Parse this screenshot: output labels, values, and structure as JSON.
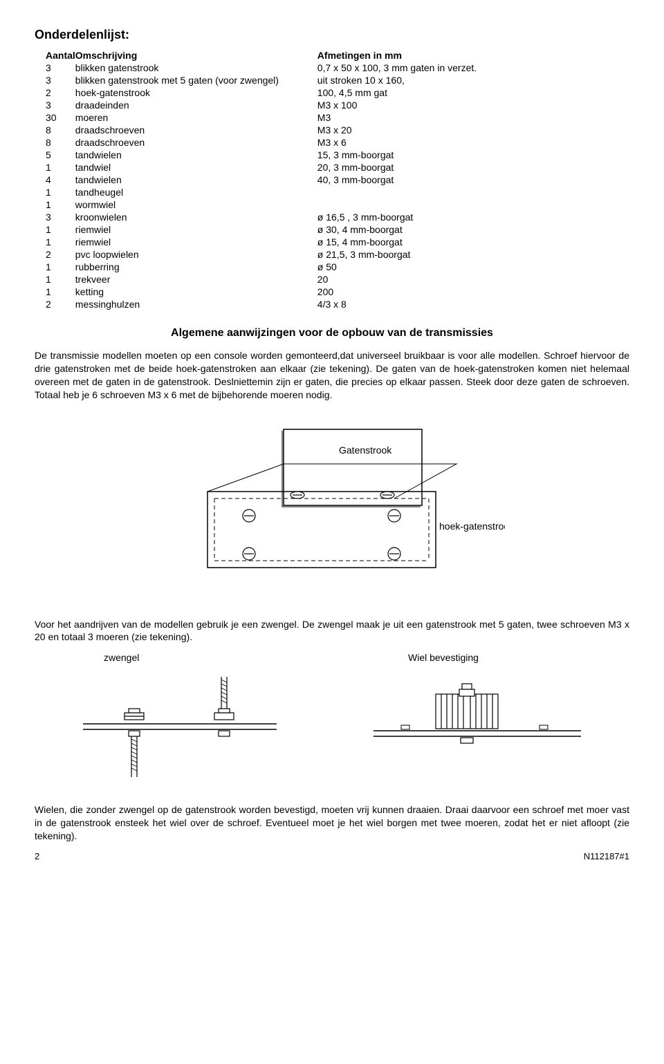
{
  "title": "Onderdelenlijst:",
  "header": {
    "qty": "Aantal",
    "desc": "Omschrijving",
    "dim": "Afmetingen in mm"
  },
  "rows": [
    {
      "q": "3",
      "d": "blikken gatenstrook",
      "m": "0,7 x 50 x 100, 3 mm gaten in verzet."
    },
    {
      "q": "3",
      "d": "blikken gatenstrook met 5 gaten (voor zwengel)",
      "m": "uit stroken 10 x 160,"
    },
    {
      "q": "2",
      "d": "hoek-gatenstrook",
      "m": "100, 4,5 mm gat"
    },
    {
      "q": "3",
      "d": "draadeinden",
      "m": "M3 x 100"
    },
    {
      "q": "30",
      "d": "moeren",
      "m": "M3"
    },
    {
      "q": "8",
      "d": "draadschroeven",
      "m": "M3 x 20"
    },
    {
      "q": "8",
      "d": "draadschroeven",
      "m": "M3 x 6"
    },
    {
      "q": "5",
      "d": "tandwielen",
      "m": "15, 3 mm-boorgat"
    },
    {
      "q": "1",
      "d": "tandwiel",
      "m": "20, 3 mm-boorgat"
    },
    {
      "q": "4",
      "d": "tandwielen",
      "m": "40, 3 mm-boorgat"
    },
    {
      "q": "1",
      "d": "tandheugel",
      "m": ""
    },
    {
      "q": "1",
      "d": "wormwiel",
      "m": ""
    },
    {
      "q": "3",
      "d": "kroonwielen",
      "m": "ø 16,5 , 3 mm-boorgat"
    },
    {
      "q": "1",
      "d": "riemwiel",
      "m": "ø 30, 4 mm-boorgat"
    },
    {
      "q": "1",
      "d": "riemwiel",
      "m": "ø 15, 4 mm-boorgat"
    },
    {
      "q": "2",
      "d": "pvc loopwielen",
      "m": "ø 21,5, 3 mm-boorgat"
    },
    {
      "q": "1",
      "d": "rubberring",
      "m": "ø 50"
    },
    {
      "q": "1",
      "d": "trekveer",
      "m": "20"
    },
    {
      "q": "1",
      "d": "ketting",
      "m": "200"
    },
    {
      "q": "2",
      "d": "messinghulzen",
      "m": "4/3 x 8"
    }
  ],
  "section_title": "Algemene aanwijzingen voor de opbouw van de transmissies",
  "para1": "De transmissie modellen moeten op een console worden gemonteerd,dat universeel bruikbaar is voor alle modellen. Schroef hiervoor de drie gatenstroken met de beide hoek-gatenstroken aan elkaar (zie tekening). De gaten van de hoek-gatenstroken komen niet helemaal overeen met de gaten in de gatenstrook. Deslniettemin zijn er gaten, die precies op elkaar passen. Steek door deze gaten de schroeven. Totaal heb je 6 schroeven M3 x 6 met de bijbehorende moeren nodig.",
  "labels": {
    "gatenstrook": "Gatenstrook",
    "hoek": "hoek-gatenstrook",
    "zwengel": "zwengel",
    "wiel": "Wiel bevestiging"
  },
  "para2": "Voor het aandrijven van de modellen gebruik je een zwengel. De zwengel maak je uit een gatenstrook met 5 gaten, twee schroeven M3 x 20 en totaal 3 moeren (zie tekening).",
  "para3": "Wielen, die zonder zwengel op de gatenstrook worden bevestigd, moeten vrij kunnen draaien. Draai daarvoor een schroef met moer vast in de gatenstrook ensteek het wiel over de schroef. Eventueel moet je het wiel borgen met twee moeren, zodat het er niet afloopt (zie tekening).",
  "footer": {
    "page": "2",
    "code": "N112187#1"
  },
  "style": {
    "stroke": "#000000",
    "dash": "6,4",
    "bg": "#ffffff"
  }
}
